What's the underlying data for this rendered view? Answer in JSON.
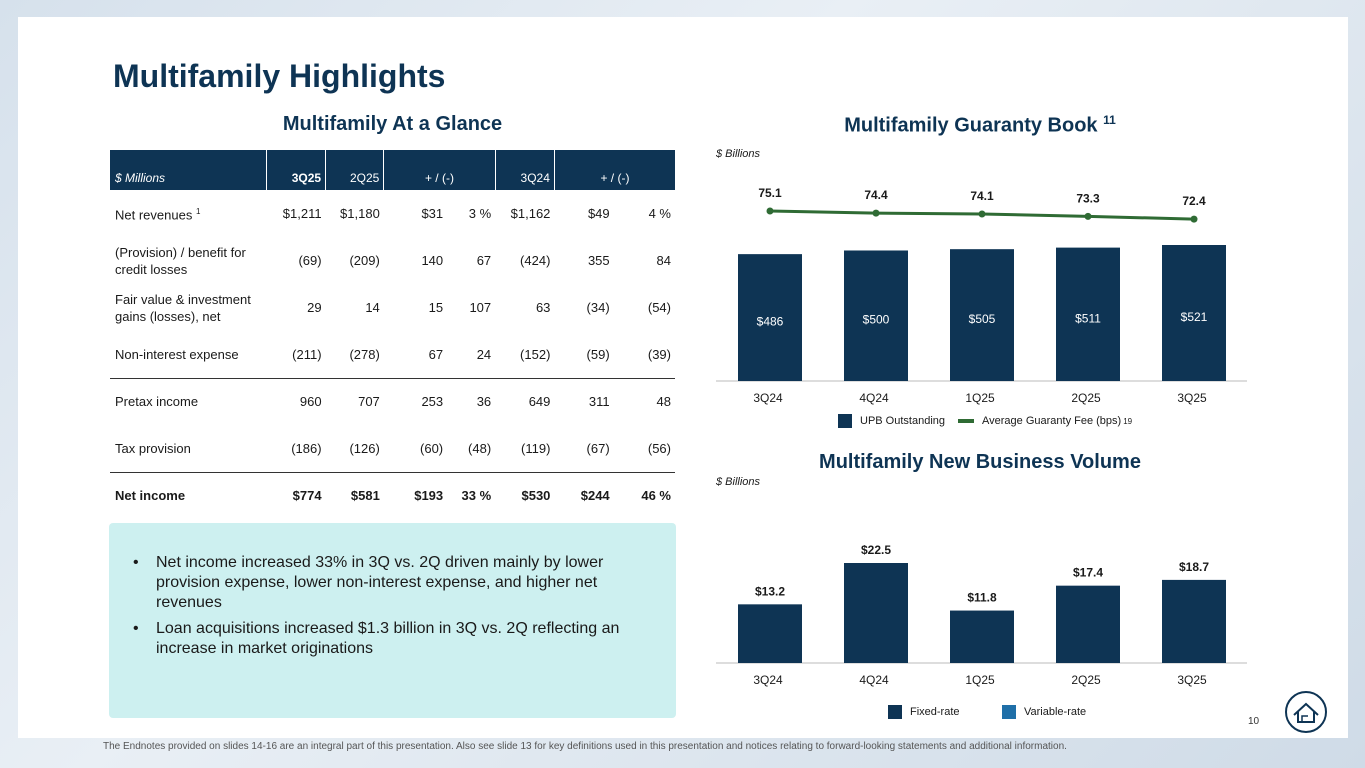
{
  "title": "Multifamily Highlights",
  "glance": {
    "heading": "Multifamily At a Glance",
    "headers": [
      "$ Millions",
      "3Q25",
      "2Q25",
      "+ / (-)",
      "3Q24",
      "+ / (-)"
    ],
    "rows": [
      {
        "label": "Net revenues",
        "sup": "1",
        "v": [
          "$1,211",
          "$1,180",
          "$31",
          "3 %",
          "$1,162",
          "$49",
          "4 %"
        ]
      },
      {
        "label": "(Provision) / benefit for credit losses",
        "sup": "",
        "v": [
          "(69)",
          "(209)",
          "140",
          "67",
          "(424)",
          "355",
          "84"
        ]
      },
      {
        "label": "Fair value & investment gains (losses), net",
        "sup": "",
        "v": [
          "29",
          "14",
          "15",
          "107",
          "63",
          "(34)",
          "(54)"
        ]
      },
      {
        "label": "Non-interest expense",
        "sup": "",
        "v": [
          "(211)",
          "(278)",
          "67",
          "24",
          "(152)",
          "(59)",
          "(39)"
        ]
      },
      {
        "label": "Pretax income",
        "sup": "",
        "v": [
          "960",
          "707",
          "253",
          "36",
          "649",
          "311",
          "48"
        ]
      },
      {
        "label": "Tax provision",
        "sup": "",
        "v": [
          "(186)",
          "(126)",
          "(60)",
          "(48)",
          "(119)",
          "(67)",
          "(56)"
        ]
      },
      {
        "label": "Net income",
        "sup": "",
        "v": [
          "$774",
          "$581",
          "$193",
          "33 %",
          "$530",
          "$244",
          "46 %"
        ]
      }
    ]
  },
  "callout": {
    "bullets": [
      "Net income increased 33% in 3Q vs. 2Q driven mainly by lower provision expense, lower non-interest expense, and higher net revenues",
      "Loan acquisitions increased $1.3 billion in 3Q vs. 2Q reflecting an increase in market originations"
    ]
  },
  "guaranty": {
    "heading": "Multifamily Guaranty Book",
    "heading_sup": "11",
    "unit": "$ Billions",
    "legend_bar": "UPB Outstanding",
    "legend_line": "Average Guaranty Fee (bps)",
    "legend_line_sup": "19"
  },
  "newbiz": {
    "heading": "Multifamily New Business Volume",
    "unit": "$ Billions",
    "legend_fixed": "Fixed-rate",
    "legend_variable": "Variable-rate"
  },
  "footnote": "The Endnotes provided on slides 14-16 are an integral part of this presentation. Also see slide 13 for key definitions used in this presentation and notices relating to forward-looking statements and additional information.",
  "page_number": "10",
  "colors": {
    "navy": "#0e3454",
    "green": "#2f6b34",
    "variable": "#1f6fa8",
    "callout": "#cdf0f0"
  },
  "chart_data": [
    {
      "type": "bar",
      "title": "Multifamily Guaranty Book",
      "categories": [
        "3Q24",
        "4Q24",
        "1Q25",
        "2Q25",
        "3Q25"
      ],
      "series": [
        {
          "name": "UPB Outstanding",
          "values": [
            486,
            500,
            505,
            511,
            521
          ],
          "labels": [
            "$486",
            "$500",
            "$505",
            "$511",
            "$521"
          ]
        },
        {
          "name": "Average Guaranty Fee (bps)",
          "type": "line",
          "values": [
            75.1,
            74.4,
            74.1,
            73.3,
            72.4
          ],
          "labels": [
            "75.1",
            "74.4",
            "74.1",
            "73.3",
            "72.4"
          ]
        }
      ],
      "ylabel": "$ Billions",
      "ylim": [
        0,
        560
      ]
    },
    {
      "type": "bar",
      "title": "Multifamily New Business Volume",
      "categories": [
        "3Q24",
        "4Q24",
        "1Q25",
        "2Q25",
        "3Q25"
      ],
      "series": [
        {
          "name": "Fixed-rate",
          "values": [
            13.2,
            22.5,
            11.8,
            17.4,
            18.7
          ],
          "labels": [
            "$13.2",
            "$22.5",
            "$11.8",
            "$17.4",
            "$18.7"
          ]
        },
        {
          "name": "Variable-rate",
          "values": [
            0,
            0,
            0,
            0,
            0
          ]
        }
      ],
      "ylabel": "$ Billions",
      "ylim": [
        0,
        25
      ]
    }
  ]
}
